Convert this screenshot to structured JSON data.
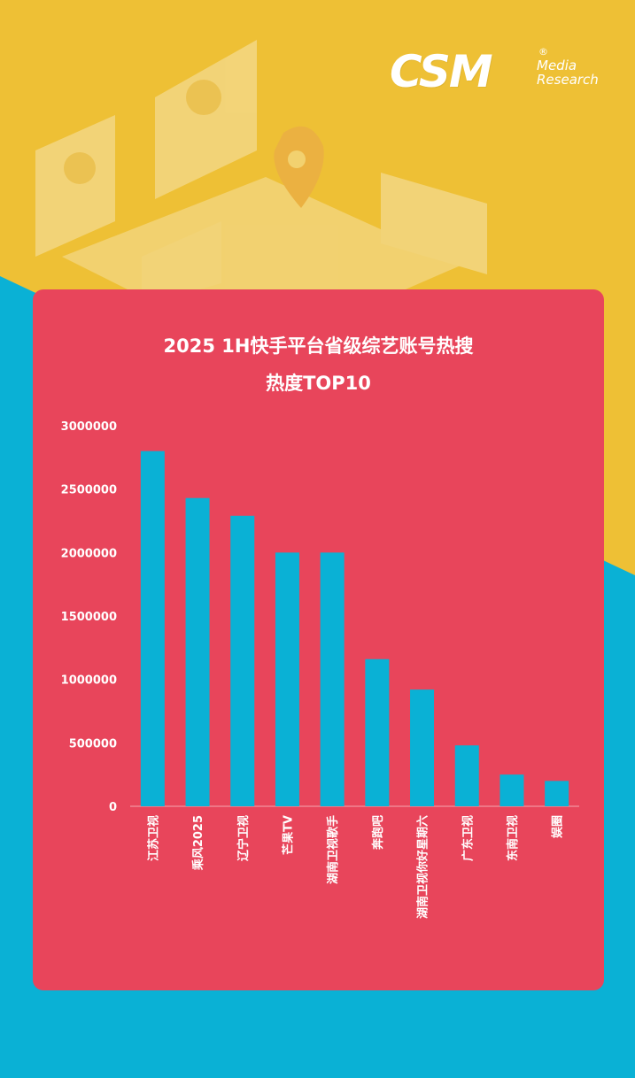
{
  "brand": {
    "logo_main": "CSM",
    "logo_reg": "®",
    "logo_sub_1": "Media",
    "logo_sub_2": "Research"
  },
  "colors": {
    "top_background": "#EEC035",
    "bottom_background": "#0AB1D5",
    "card": "#E8455B",
    "bar": "#0AB1D5",
    "text": "#FFFFFF"
  },
  "chart_data": {
    "type": "bar",
    "title": "2025 1H快手平台省级综艺账号热搜",
    "subtitle": "热度TOP10",
    "categories": [
      "江苏卫视",
      "乘风2025",
      "辽宁卫视",
      "芒果TV",
      "湖南卫视歌手",
      "奔跑吧",
      "湖南卫视你好星期六",
      "广东卫视",
      "东南卫视",
      "娱圈"
    ],
    "values": [
      2800000,
      2430000,
      2290000,
      2000000,
      2000000,
      1160000,
      920000,
      480000,
      250000,
      200000
    ],
    "yticks": [
      0,
      500000,
      1000000,
      1500000,
      2000000,
      2500000,
      3000000
    ],
    "ylim": [
      0,
      3000000
    ],
    "grid": false,
    "legend": "none"
  }
}
